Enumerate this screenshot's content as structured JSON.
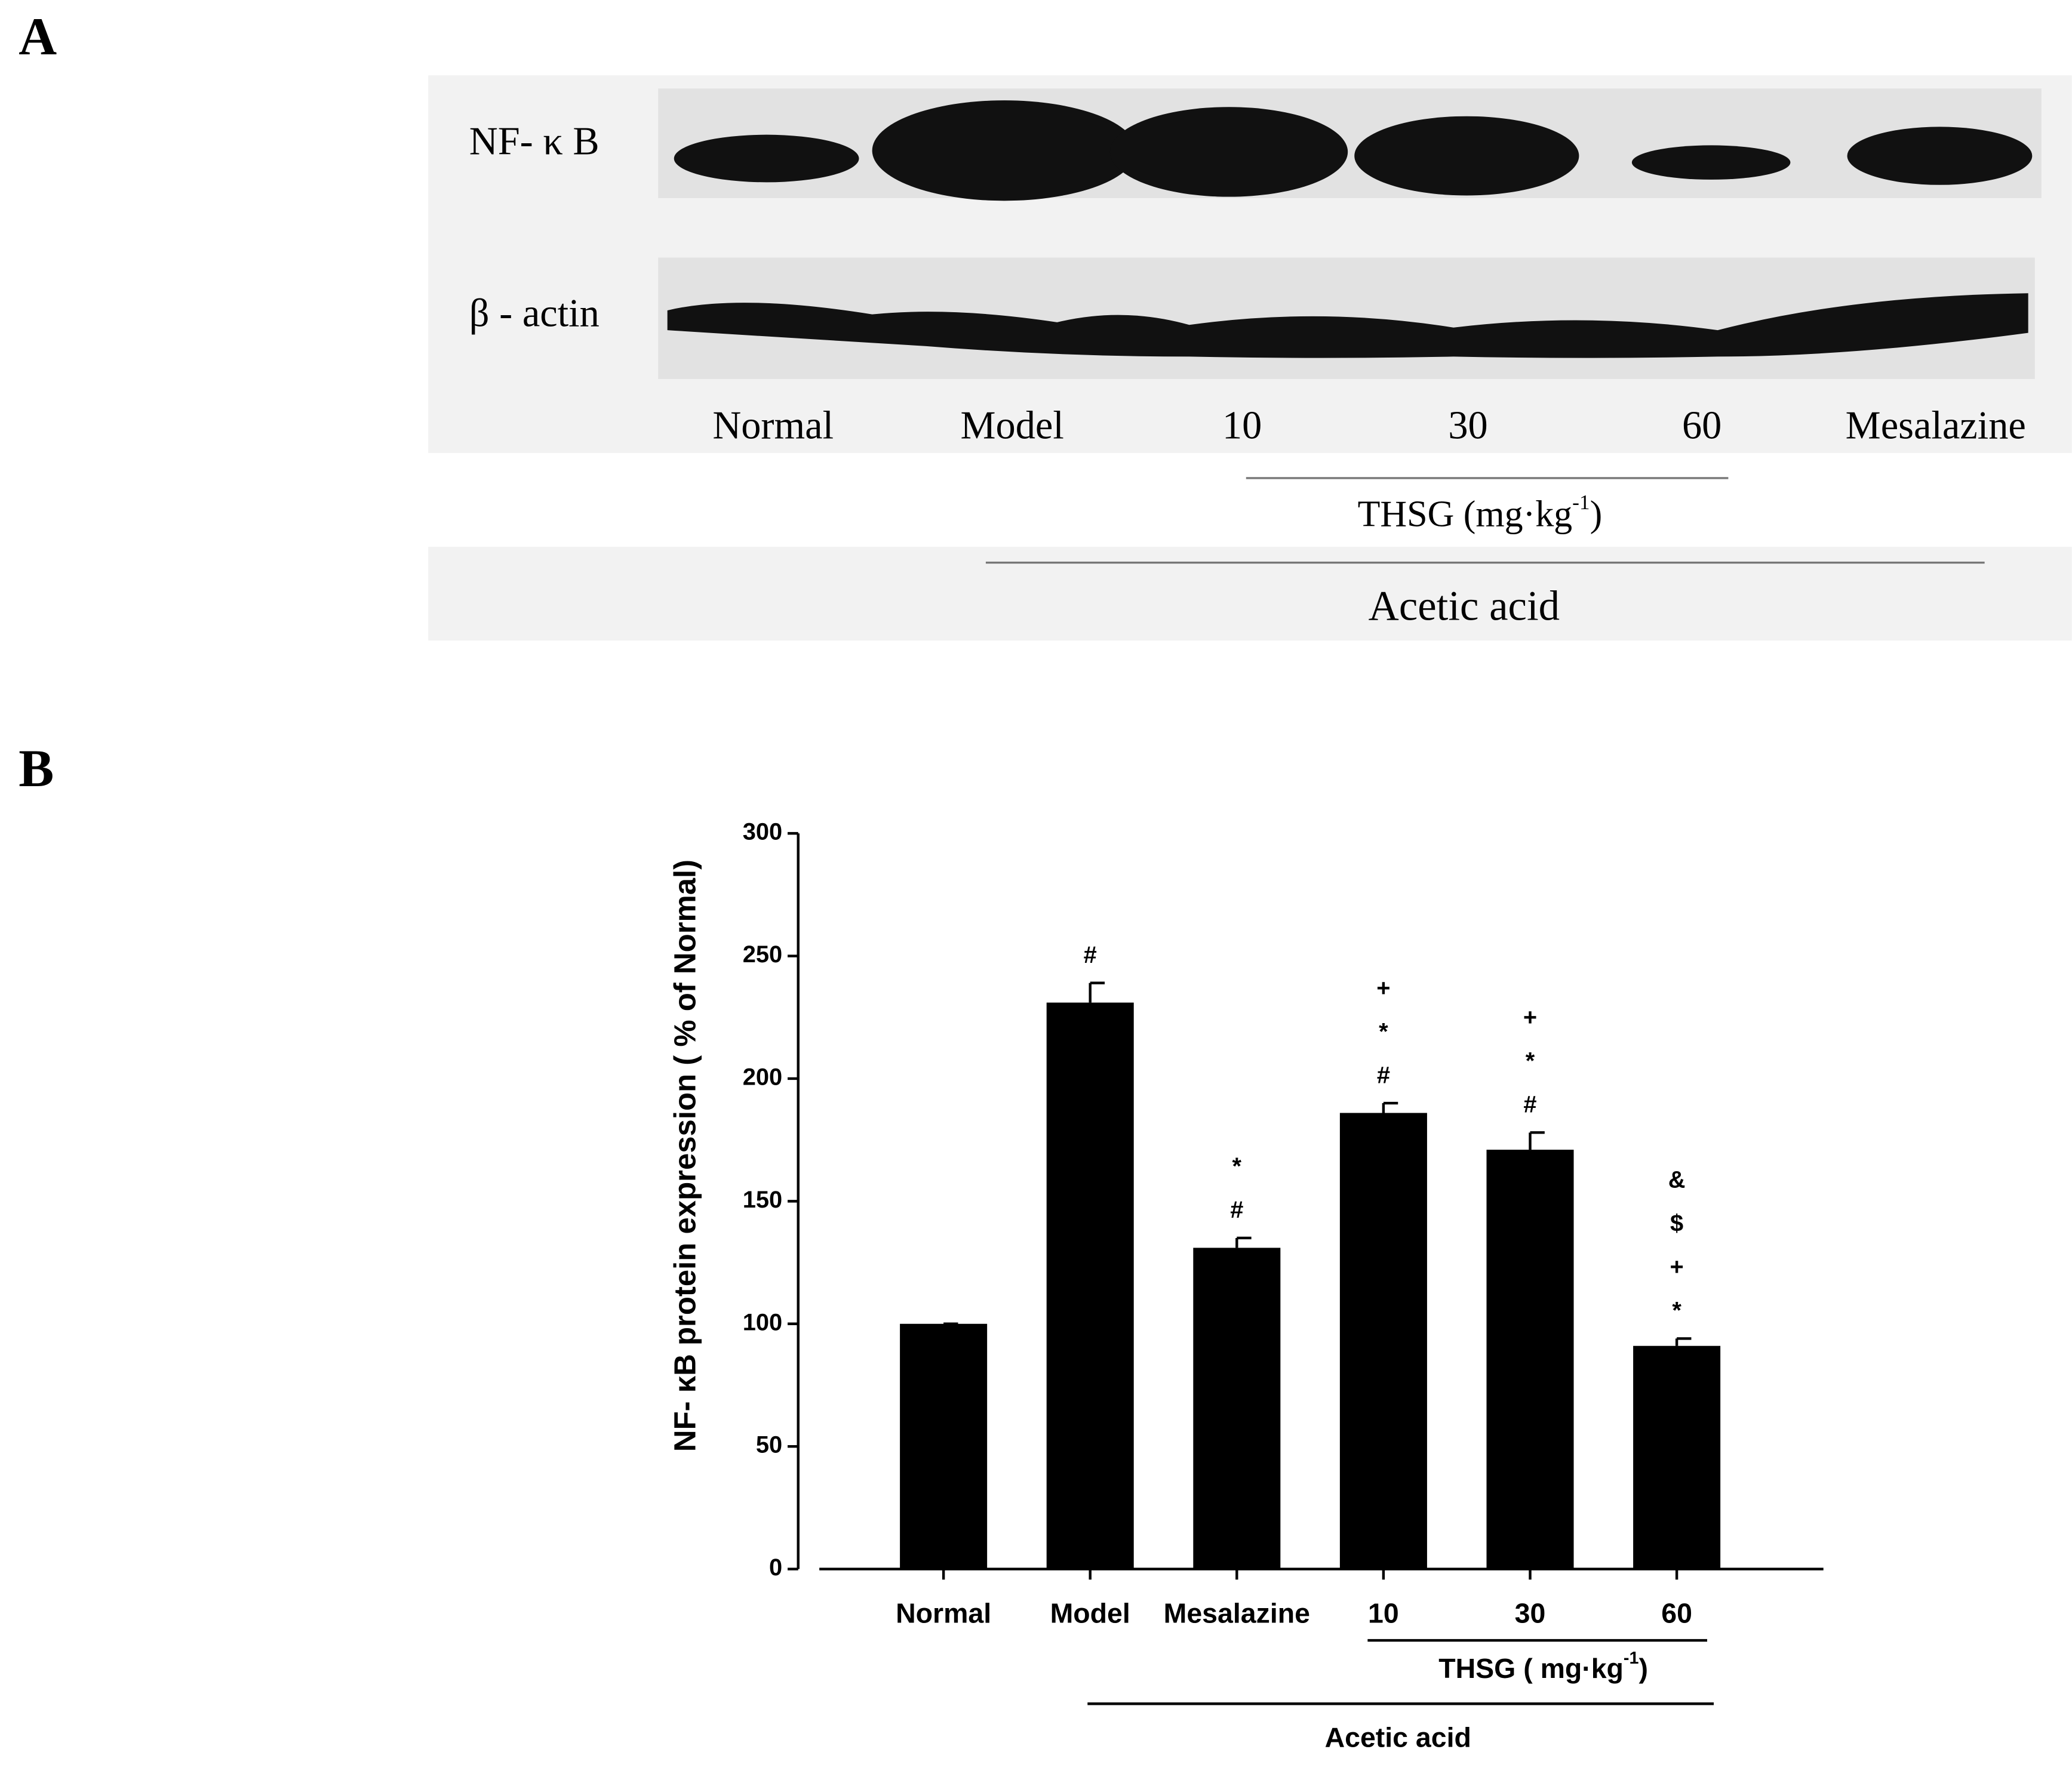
{
  "panel_a": {
    "label": "A",
    "rows": [
      "NF- κ B",
      "β - actin"
    ],
    "lanes": [
      "Normal",
      "Model",
      "10",
      "30",
      "60",
      "Mesalazine"
    ],
    "group_thsg": {
      "text": "THSG (mg·kg",
      "superscript": "-1",
      "close": ")"
    },
    "group_acetic": "Acetic acid"
  },
  "panel_label_b": "B",
  "chart_data": {
    "type": "bar",
    "ylabel": "NF- κB protein expression ( % of Normal)",
    "categories": [
      "Normal",
      "Model",
      "Mesalazine",
      "10",
      "30",
      "60"
    ],
    "values": [
      100,
      231,
      131,
      186,
      171,
      91
    ],
    "errors": [
      0,
      8,
      4,
      4,
      7,
      3
    ],
    "annotations": [
      [],
      [
        "#"
      ],
      [
        "*",
        "#"
      ],
      [
        "+",
        "*",
        "#"
      ],
      [
        "+",
        "*",
        "#"
      ],
      [
        "&",
        "$",
        "+",
        "*"
      ]
    ],
    "color": "#000000",
    "ylim": [
      0,
      300
    ],
    "yticks": [
      0,
      50,
      100,
      150,
      200,
      250,
      300
    ],
    "grid": false,
    "group_thsg": {
      "text": "THSG ( mg·kg",
      "superscript": "-1",
      "close": ")"
    },
    "group_acetic": "Acetic acid"
  }
}
